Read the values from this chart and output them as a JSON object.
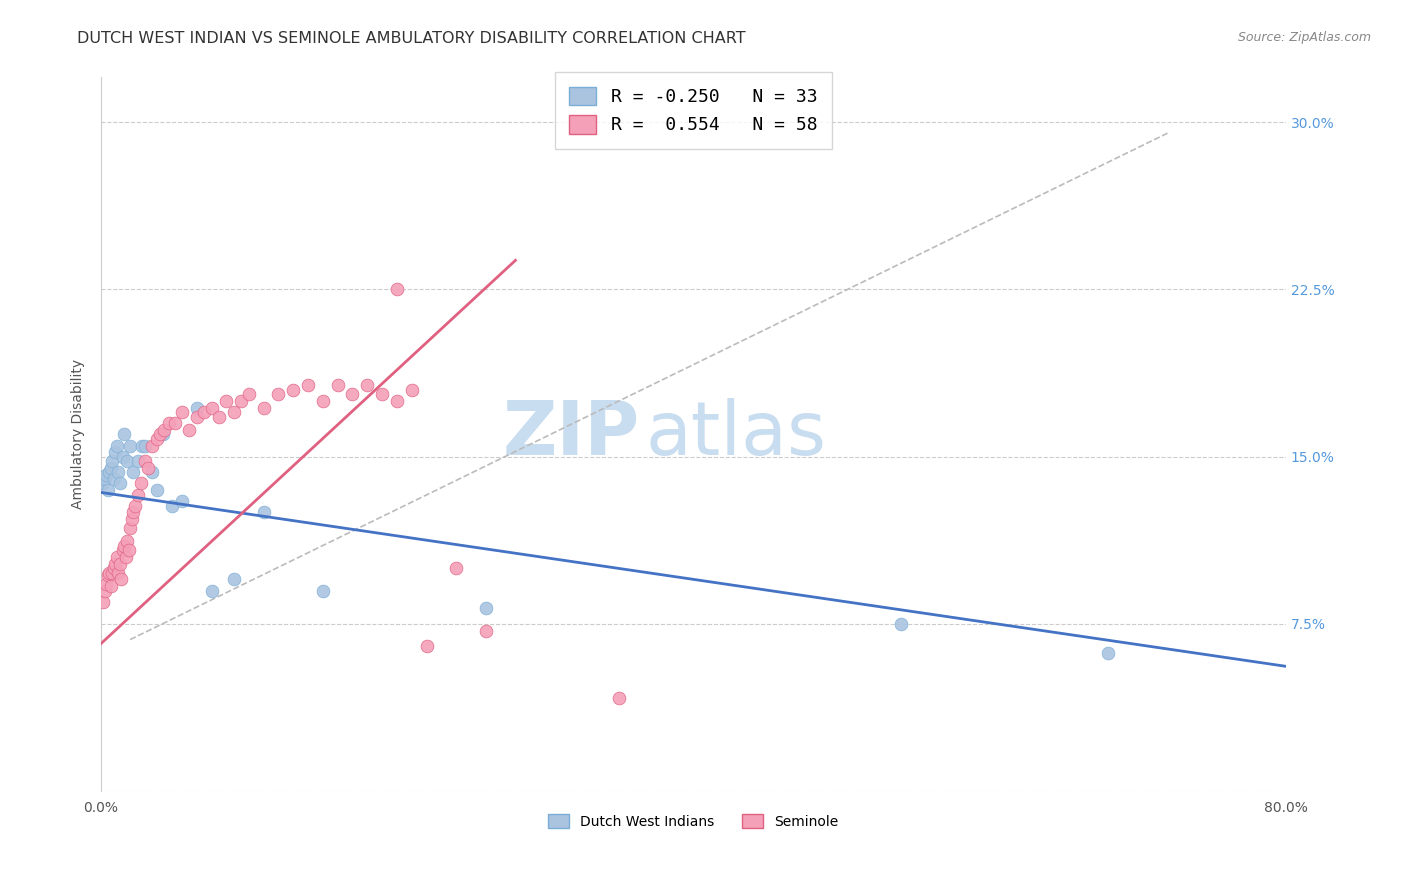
{
  "title": "DUTCH WEST INDIAN VS SEMINOLE AMBULATORY DISABILITY CORRELATION CHART",
  "source": "Source: ZipAtlas.com",
  "ylabel": "Ambulatory Disability",
  "xlim": [
    0.0,
    0.8
  ],
  "ylim": [
    0.0,
    0.32
  ],
  "watermark_zip": "ZIP",
  "watermark_atlas": "atlas",
  "series": [
    {
      "name": "Dutch West Indians",
      "R": -0.25,
      "N": 33,
      "color": "#aac4e0",
      "edge_color": "#7aaed6",
      "x": [
        0.002,
        0.003,
        0.004,
        0.005,
        0.006,
        0.007,
        0.008,
        0.009,
        0.01,
        0.011,
        0.012,
        0.013,
        0.015,
        0.016,
        0.018,
        0.02,
        0.022,
        0.025,
        0.028,
        0.03,
        0.035,
        0.038,
        0.042,
        0.048,
        0.055,
        0.065,
        0.075,
        0.09,
        0.11,
        0.15,
        0.26,
        0.54,
        0.68
      ],
      "y": [
        0.138,
        0.14,
        0.142,
        0.135,
        0.143,
        0.145,
        0.148,
        0.14,
        0.152,
        0.155,
        0.143,
        0.138,
        0.15,
        0.16,
        0.148,
        0.155,
        0.143,
        0.148,
        0.155,
        0.155,
        0.143,
        0.135,
        0.16,
        0.128,
        0.13,
        0.172,
        0.09,
        0.095,
        0.125,
        0.09,
        0.082,
        0.075,
        0.062
      ]
    },
    {
      "name": "Seminole",
      "R": 0.554,
      "N": 58,
      "color": "#f4a0b8",
      "edge_color": "#e06080",
      "x": [
        0.002,
        0.003,
        0.004,
        0.005,
        0.006,
        0.007,
        0.008,
        0.009,
        0.01,
        0.011,
        0.012,
        0.013,
        0.014,
        0.015,
        0.016,
        0.017,
        0.018,
        0.019,
        0.02,
        0.021,
        0.022,
        0.023,
        0.025,
        0.027,
        0.03,
        0.032,
        0.035,
        0.038,
        0.04,
        0.043,
        0.046,
        0.05,
        0.055,
        0.06,
        0.065,
        0.07,
        0.075,
        0.08,
        0.085,
        0.09,
        0.095,
        0.1,
        0.11,
        0.12,
        0.13,
        0.14,
        0.15,
        0.16,
        0.17,
        0.18,
        0.19,
        0.2,
        0.21,
        0.22,
        0.24,
        0.26,
        0.35,
        0.2
      ],
      "y": [
        0.085,
        0.09,
        0.093,
        0.097,
        0.098,
        0.092,
        0.098,
        0.1,
        0.102,
        0.105,
        0.098,
        0.102,
        0.095,
        0.108,
        0.11,
        0.105,
        0.112,
        0.108,
        0.118,
        0.122,
        0.125,
        0.128,
        0.133,
        0.138,
        0.148,
        0.145,
        0.155,
        0.158,
        0.16,
        0.162,
        0.165,
        0.165,
        0.17,
        0.162,
        0.168,
        0.17,
        0.172,
        0.168,
        0.175,
        0.17,
        0.175,
        0.178,
        0.172,
        0.178,
        0.18,
        0.182,
        0.175,
        0.182,
        0.178,
        0.182,
        0.178,
        0.175,
        0.18,
        0.065,
        0.1,
        0.072,
        0.042,
        0.225
      ]
    }
  ],
  "blue_trend": {
    "x_start": 0.0,
    "y_start": 0.134,
    "x_end": 0.8,
    "y_end": 0.056
  },
  "pink_trend": {
    "x_start": 0.0,
    "y_start": 0.066,
    "x_end": 0.28,
    "y_end": 0.238
  },
  "diag_line": {
    "x_start": 0.02,
    "y_start": 0.068,
    "x_end": 0.72,
    "y_end": 0.295
  },
  "title_fontsize": 11.5,
  "axis_label_fontsize": 10,
  "tick_fontsize": 10,
  "legend_fontsize": 13,
  "source_fontsize": 9,
  "watermark_fontsize_zip": 54,
  "watermark_fontsize_atlas": 54,
  "watermark_color_zip": "#c8ddf0",
  "watermark_color_atlas": "#c8ddf0",
  "scatter_size": 85,
  "title_color": "#333333",
  "axis_color": "#555555",
  "right_tick_color": "#5599dd",
  "grid_color": "#cccccc",
  "grid_style": "--",
  "background_color": "#ffffff"
}
